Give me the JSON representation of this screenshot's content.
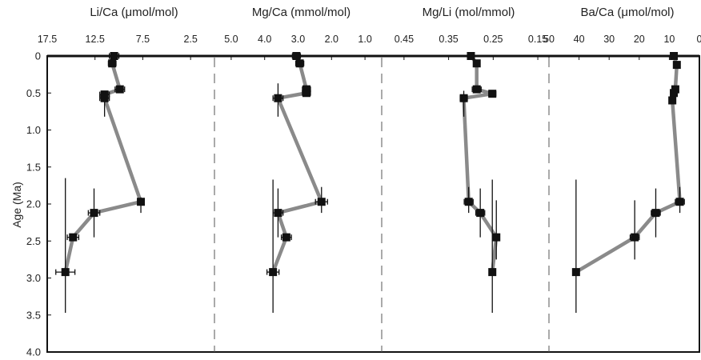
{
  "y_axis": {
    "label": "Age (Ma)",
    "ticks": [
      "0",
      "0.5",
      "1.0",
      "1.5",
      "2.0",
      "2.5",
      "3.0",
      "3.5",
      "4.0"
    ],
    "tick_values": [
      0,
      0.5,
      1.0,
      1.5,
      2.0,
      2.5,
      3.0,
      3.5,
      4.0
    ],
    "range": [
      0,
      4.0
    ],
    "reversed": true
  },
  "chart_data": [
    {
      "type": "scatter",
      "title": "Li/Ca (μmol/mol)",
      "xlabel": "Li/Ca (μmol/mol)",
      "ylabel": "Age (Ma)",
      "xlim": [
        17.5,
        0
      ],
      "x_reversed": true,
      "x_ticks": [
        "17.5",
        "12.5",
        "7.5",
        "2.5"
      ],
      "x_tick_values": [
        17.5,
        12.5,
        7.5,
        2.5
      ],
      "series": [
        {
          "points": [
            {
              "x": 10.5,
              "y": 0.0,
              "xerr": 0.5,
              "yerr_low": 0,
              "yerr_high": 0
            },
            {
              "x": 10.7,
              "y": 0.1,
              "xerr": 0.4,
              "yerr_low": 0,
              "yerr_high": 0
            },
            {
              "x": 9.9,
              "y": 0.45,
              "xerr": 0.5,
              "yerr_low": 0,
              "yerr_high": 0
            },
            {
              "x": 11.5,
              "y": 0.52,
              "xerr": 0.5,
              "yerr_low": 0,
              "yerr_high": 0
            },
            {
              "x": 11.5,
              "y": 0.57,
              "xerr": 0.5,
              "yerr_low": 0.1,
              "yerr_high": 0.25
            },
            {
              "x": 7.7,
              "y": 1.97,
              "xerr": 0.2,
              "yerr_low": 0.06,
              "yerr_high": 0.15
            },
            {
              "x": 12.6,
              "y": 2.12,
              "xerr": 0.6,
              "yerr_low": 0.33,
              "yerr_high": 0.33
            },
            {
              "x": 14.8,
              "y": 2.45,
              "xerr": 0.6,
              "yerr_low": 0,
              "yerr_high": 0
            },
            {
              "x": 15.6,
              "y": 2.92,
              "xerr": 1.0,
              "yerr_low": 1.27,
              "yerr_high": 0.55
            }
          ]
        }
      ]
    },
    {
      "type": "scatter",
      "title": "Mg/Ca (mmol/mol)",
      "xlabel": "Mg/Ca (mmol/mol)",
      "ylabel": "Age (Ma)",
      "xlim": [
        5.5,
        0.5
      ],
      "x_reversed": true,
      "x_ticks": [
        "5.0",
        "4.0",
        "3.0",
        "2.0",
        "1.0"
      ],
      "x_tick_values": [
        5.0,
        4.0,
        3.0,
        2.0,
        1.0
      ],
      "series": [
        {
          "points": [
            {
              "x": 3.05,
              "y": 0.0,
              "xerr": 0.12,
              "yerr_low": 0,
              "yerr_high": 0
            },
            {
              "x": 2.95,
              "y": 0.1,
              "xerr": 0.12,
              "yerr_low": 0,
              "yerr_high": 0
            },
            {
              "x": 2.75,
              "y": 0.45,
              "xerr": 0.12,
              "yerr_low": 0,
              "yerr_high": 0
            },
            {
              "x": 2.75,
              "y": 0.5,
              "xerr": 0.12,
              "yerr_low": 0,
              "yerr_high": 0
            },
            {
              "x": 3.6,
              "y": 0.57,
              "xerr": 0.15,
              "yerr_low": 0.2,
              "yerr_high": 0.25
            },
            {
              "x": 2.3,
              "y": 1.97,
              "xerr": 0.18,
              "yerr_low": 0.2,
              "yerr_high": 0.15
            },
            {
              "x": 3.6,
              "y": 2.12,
              "xerr": 0.15,
              "yerr_low": 0.33,
              "yerr_high": 0.33
            },
            {
              "x": 3.35,
              "y": 2.45,
              "xerr": 0.15,
              "yerr_low": 0,
              "yerr_high": 0
            },
            {
              "x": 3.75,
              "y": 2.92,
              "xerr": 0.18,
              "yerr_low": 1.25,
              "yerr_high": 0.55
            }
          ]
        }
      ]
    },
    {
      "type": "scatter",
      "title": "Mg/Li (mol/mmol)",
      "xlabel": "Mg/Li (mol/mmol)",
      "ylabel": "Age (Ma)",
      "xlim": [
        0.5,
        0.125
      ],
      "x_reversed": true,
      "x_ticks": [
        "0.45",
        "0.35",
        "0.25",
        "0.15"
      ],
      "x_tick_values": [
        0.45,
        0.35,
        0.25,
        0.15
      ],
      "series": [
        {
          "points": [
            {
              "x": 0.3,
              "y": 0.0,
              "xerr": 0.006,
              "yerr_low": 0,
              "yerr_high": 0
            },
            {
              "x": 0.287,
              "y": 0.1,
              "xerr": 0.007,
              "yerr_low": 0,
              "yerr_high": 0
            },
            {
              "x": 0.287,
              "y": 0.45,
              "xerr": 0.01,
              "yerr_low": 0,
              "yerr_high": 0
            },
            {
              "x": 0.252,
              "y": 0.51,
              "xerr": 0.008,
              "yerr_low": 0,
              "yerr_high": 0
            },
            {
              "x": 0.316,
              "y": 0.57,
              "xerr": 0.008,
              "yerr_low": 0.1,
              "yerr_high": 0.25
            },
            {
              "x": 0.305,
              "y": 1.97,
              "xerr": 0.01,
              "yerr_low": 0.2,
              "yerr_high": 0.15
            },
            {
              "x": 0.279,
              "y": 2.12,
              "xerr": 0.01,
              "yerr_low": 0.33,
              "yerr_high": 0.33
            },
            {
              "x": 0.243,
              "y": 2.45,
              "xerr": 0.006,
              "yerr_low": 0.5,
              "yerr_high": 0.3
            },
            {
              "x": 0.252,
              "y": 2.92,
              "xerr": 0.006,
              "yerr_low": 1.25,
              "yerr_high": 0.55
            }
          ]
        }
      ]
    },
    {
      "type": "scatter",
      "title": "Ba/Ca (μmol/mol)",
      "xlabel": "Ba/Ca (μmol/mol)",
      "ylabel": "Age (Ma)",
      "xlim": [
        50,
        0
      ],
      "x_reversed": true,
      "x_ticks": [
        "50",
        "40",
        "30",
        "20",
        "10",
        "0"
      ],
      "x_tick_values": [
        50,
        40,
        30,
        20,
        10,
        0
      ],
      "series": [
        {
          "points": [
            {
              "x": 8.5,
              "y": 0.0,
              "xerr": 1.0,
              "yerr_low": 0,
              "yerr_high": 0
            },
            {
              "x": 7.5,
              "y": 0.12,
              "xerr": 0.8,
              "yerr_low": 0,
              "yerr_high": 0
            },
            {
              "x": 8.0,
              "y": 0.45,
              "xerr": 0.8,
              "yerr_low": 0,
              "yerr_high": 0
            },
            {
              "x": 8.5,
              "y": 0.5,
              "xerr": 0.8,
              "yerr_low": 0,
              "yerr_high": 0
            },
            {
              "x": 9.0,
              "y": 0.6,
              "xerr": 0.8,
              "yerr_low": 0,
              "yerr_high": 0
            },
            {
              "x": 6.5,
              "y": 1.97,
              "xerr": 1.5,
              "yerr_low": 0.2,
              "yerr_high": 0.15
            },
            {
              "x": 14.5,
              "y": 2.12,
              "xerr": 1.5,
              "yerr_low": 0.33,
              "yerr_high": 0.33
            },
            {
              "x": 21.5,
              "y": 2.45,
              "xerr": 1.5,
              "yerr_low": 0.5,
              "yerr_high": 0.3
            },
            {
              "x": 41.0,
              "y": 2.92,
              "xerr": 0,
              "yerr_low": 1.25,
              "yerr_high": 0.55
            }
          ]
        }
      ]
    }
  ]
}
